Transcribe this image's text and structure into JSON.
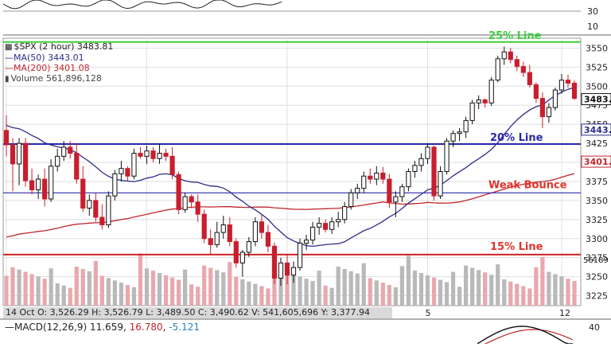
{
  "chart_data": {
    "type": "candlestick",
    "symbol_label": "$SPX (2 hour)",
    "last_price": "3483.81",
    "ma50_label": "MA(50)",
    "ma50_value": "3443.01",
    "ma200_label": "MA(200)",
    "ma200_value": "3401.08",
    "volume_label": "Volume",
    "volume_value": "561,896,128",
    "y_ticks": [
      "3550",
      "3525",
      "3500",
      "3475",
      "3450",
      "3425",
      "3400",
      "3375",
      "3350",
      "3325",
      "3300",
      "3275",
      "3250",
      "3225"
    ],
    "ylim": [
      3212,
      3563
    ],
    "volume_tick": "56189",
    "right_tags": [
      {
        "label": "3483.",
        "value": 3483,
        "color": "#111111"
      },
      {
        "label": "3443.",
        "value": 3443,
        "color": "#2c2c8a"
      },
      {
        "label": "3401.",
        "value": 3401,
        "color": "#c0262c"
      }
    ],
    "x_labels": [
      {
        "label": "5",
        "index": 66
      },
      {
        "label": "12",
        "index": 87
      }
    ],
    "top_panel_ticks": [
      "30",
      "10"
    ],
    "macd_label": "MACD(12,26,9)",
    "macd_values": [
      "11.659",
      "16.780",
      "-5.121"
    ],
    "macd_tick": "40",
    "info_bar": "14 Oct O: 3,526.29  H: 3,526.79  L: 3,489.50  C: 3,490.62  V: 541,605,696  Y: 3,377.94",
    "horizontal_lines": [
      {
        "name": "25% Line",
        "value": 3558,
        "color": "#3ccf3c"
      },
      {
        "name": "20% Line",
        "value": 3424,
        "color": "#2a2aa8"
      },
      {
        "name": "Weak Bounce",
        "value": 3360,
        "color": "#2a2aa8"
      },
      {
        "name": "15% Line",
        "value": 3279,
        "color": "#cc2222"
      }
    ],
    "candles": [
      [
        3442,
        3462,
        3408,
        3423
      ],
      [
        3423,
        3432,
        3362,
        3398
      ],
      [
        3398,
        3432,
        3370,
        3425
      ],
      [
        3425,
        3432,
        3368,
        3376
      ],
      [
        3376,
        3392,
        3358,
        3364
      ],
      [
        3364,
        3384,
        3352,
        3378
      ],
      [
        3378,
        3392,
        3342,
        3352
      ],
      [
        3352,
        3404,
        3348,
        3395
      ],
      [
        3395,
        3418,
        3388,
        3408
      ],
      [
        3408,
        3428,
        3402,
        3420
      ],
      [
        3420,
        3428,
        3405,
        3412
      ],
      [
        3412,
        3425,
        3372,
        3378
      ],
      [
        3378,
        3395,
        3335,
        3340
      ],
      [
        3340,
        3358,
        3330,
        3350
      ],
      [
        3350,
        3360,
        3322,
        3328
      ],
      [
        3328,
        3345,
        3312,
        3318
      ],
      [
        3318,
        3362,
        3314,
        3356
      ],
      [
        3356,
        3390,
        3350,
        3385
      ],
      [
        3385,
        3402,
        3375,
        3392
      ],
      [
        3392,
        3395,
        3376,
        3382
      ],
      [
        3382,
        3418,
        3378,
        3412
      ],
      [
        3412,
        3420,
        3405,
        3408
      ],
      [
        3408,
        3422,
        3398,
        3415
      ],
      [
        3415,
        3420,
        3400,
        3405
      ],
      [
        3405,
        3425,
        3398,
        3412
      ],
      [
        3412,
        3418,
        3402,
        3408
      ],
      [
        3408,
        3420,
        3378,
        3384
      ],
      [
        3384,
        3388,
        3332,
        3338
      ],
      [
        3338,
        3360,
        3334,
        3355
      ],
      [
        3355,
        3358,
        3340,
        3348
      ],
      [
        3348,
        3358,
        3322,
        3332
      ],
      [
        3332,
        3338,
        3294,
        3300
      ],
      [
        3300,
        3312,
        3278,
        3292
      ],
      [
        3292,
        3322,
        3288,
        3308
      ],
      [
        3308,
        3330,
        3300,
        3318
      ],
      [
        3318,
        3328,
        3290,
        3296
      ],
      [
        3296,
        3300,
        3262,
        3268
      ],
      [
        3268,
        3285,
        3250,
        3282
      ],
      [
        3282,
        3302,
        3276,
        3296
      ],
      [
        3296,
        3328,
        3290,
        3322
      ],
      [
        3322,
        3332,
        3300,
        3308
      ],
      [
        3308,
        3318,
        3282,
        3290
      ],
      [
        3290,
        3295,
        3240,
        3248
      ],
      [
        3248,
        3275,
        3238,
        3268
      ],
      [
        3268,
        3280,
        3240,
        3252
      ],
      [
        3252,
        3270,
        3242,
        3262
      ],
      [
        3262,
        3300,
        3258,
        3294
      ],
      [
        3294,
        3305,
        3285,
        3298
      ],
      [
        3298,
        3322,
        3292,
        3315
      ],
      [
        3315,
        3328,
        3305,
        3320
      ],
      [
        3320,
        3325,
        3308,
        3312
      ],
      [
        3312,
        3328,
        3306,
        3322
      ],
      [
        3322,
        3335,
        3315,
        3325
      ],
      [
        3325,
        3348,
        3320,
        3342
      ],
      [
        3342,
        3365,
        3338,
        3360
      ],
      [
        3360,
        3372,
        3352,
        3366
      ],
      [
        3366,
        3388,
        3360,
        3382
      ],
      [
        3382,
        3392,
        3372,
        3378
      ],
      [
        3378,
        3395,
        3370,
        3386
      ],
      [
        3386,
        3394,
        3372,
        3378
      ],
      [
        3378,
        3385,
        3340,
        3348
      ],
      [
        3348,
        3362,
        3328,
        3355
      ],
      [
        3355,
        3372,
        3348,
        3368
      ],
      [
        3368,
        3392,
        3362,
        3388
      ],
      [
        3388,
        3402,
        3380,
        3396
      ],
      [
        3396,
        3412,
        3388,
        3405
      ],
      [
        3405,
        3425,
        3398,
        3420
      ],
      [
        3420,
        3422,
        3350,
        3356
      ],
      [
        3356,
        3395,
        3352,
        3388
      ],
      [
        3388,
        3432,
        3384,
        3428
      ],
      [
        3428,
        3442,
        3420,
        3438
      ],
      [
        3438,
        3445,
        3428,
        3440
      ],
      [
        3440,
        3460,
        3432,
        3455
      ],
      [
        3455,
        3482,
        3450,
        3478
      ],
      [
        3478,
        3488,
        3470,
        3482
      ],
      [
        3482,
        3484,
        3472,
        3478
      ],
      [
        3478,
        3512,
        3474,
        3508
      ],
      [
        3508,
        3540,
        3505,
        3536
      ],
      [
        3536,
        3552,
        3528,
        3545
      ],
      [
        3545,
        3550,
        3530,
        3535
      ],
      [
        3535,
        3540,
        3520,
        3526
      ],
      [
        3526,
        3532,
        3512,
        3518
      ],
      [
        3518,
        3528,
        3498,
        3502
      ],
      [
        3502,
        3505,
        3478,
        3484
      ],
      [
        3484,
        3492,
        3445,
        3460
      ],
      [
        3460,
        3478,
        3452,
        3472
      ],
      [
        3472,
        3498,
        3468,
        3495
      ],
      [
        3495,
        3516,
        3490,
        3508
      ],
      [
        3508,
        3515,
        3498,
        3504
      ],
      [
        3504,
        3508,
        3482,
        3484
      ]
    ]
  }
}
